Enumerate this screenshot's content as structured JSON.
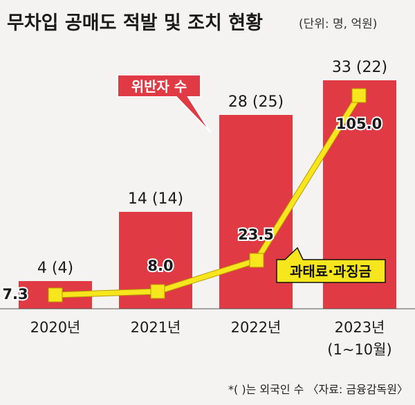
{
  "title": "무차입 공매도 적발 및 조치 현황",
  "unit": "(단위: 명, 억원)",
  "footnote": "*(   )는 외국인 수 〈자료: 금융감독원〉",
  "legend": {
    "violators": "위반자 수",
    "fines": "과태료·과징금"
  },
  "colors": {
    "bar": "#e03a45",
    "line": "#f7e51d",
    "background": "#f4f3f2"
  },
  "chart_data": {
    "type": "bar",
    "categories": [
      "2020년",
      "2021년",
      "2022년",
      "2023년\n(1~10월)"
    ],
    "series": [
      {
        "name": "위반자 수",
        "type": "bar",
        "values": [
          4,
          14,
          28,
          33
        ],
        "foreign": [
          4,
          14,
          25,
          22
        ],
        "labels": [
          "4 (4)",
          "14 (14)",
          "28 (25)",
          "33 (22)"
        ]
      },
      {
        "name": "과태료·과징금",
        "type": "line",
        "values": [
          7.3,
          8.0,
          23.5,
          105.0
        ],
        "labels": [
          "7.3",
          "8.0",
          "23.5",
          "105.0"
        ]
      }
    ],
    "title": "무차입 공매도 적발 및 조치 현황",
    "xlabel": "",
    "ylabel": "",
    "grid": false,
    "legend": "inline"
  }
}
